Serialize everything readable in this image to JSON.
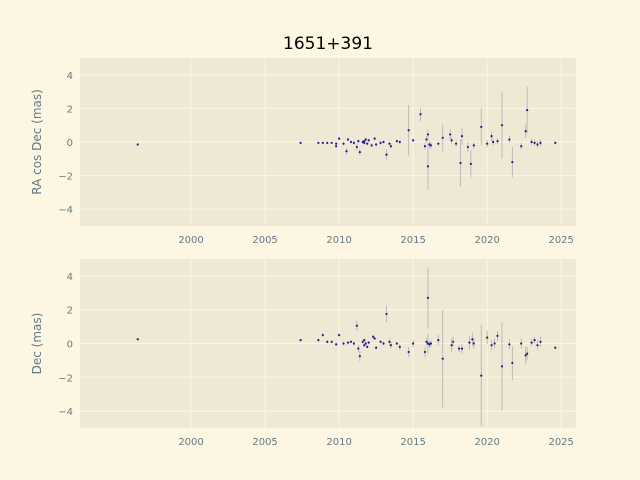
{
  "title": "1651+391",
  "chart_data": [
    {
      "type": "scatter",
      "ylabel": "RA cos Dec (mas)",
      "xlim": [
        1992.5,
        2026
      ],
      "ylim": [
        -5,
        5
      ],
      "xticks": [
        2000,
        2005,
        2010,
        2015,
        2020,
        2025
      ],
      "yticks": [
        -4,
        -2,
        0,
        2,
        4
      ],
      "grid": true,
      "marker_color": "#1f1f8f",
      "errorbar_color": "#b0b0b0",
      "points": [
        {
          "x": 1996.4,
          "y": -0.15,
          "err": 0.05
        },
        {
          "x": 2007.4,
          "y": -0.05,
          "err": 0.05
        },
        {
          "x": 2008.6,
          "y": -0.05,
          "err": 0.05
        },
        {
          "x": 2008.9,
          "y": -0.05,
          "err": 0.05
        },
        {
          "x": 2009.2,
          "y": -0.05,
          "err": 0.05
        },
        {
          "x": 2009.5,
          "y": -0.05,
          "err": 0.05
        },
        {
          "x": 2009.8,
          "y": -0.1,
          "err": 0.1
        },
        {
          "x": 2009.8,
          "y": -0.25,
          "err": 0.1
        },
        {
          "x": 2010.0,
          "y": 0.2,
          "err": 0.1
        },
        {
          "x": 2010.3,
          "y": -0.1,
          "err": 0.1
        },
        {
          "x": 2010.5,
          "y": -0.55,
          "err": 0.2
        },
        {
          "x": 2010.6,
          "y": 0.15,
          "err": 0.1
        },
        {
          "x": 2010.8,
          "y": 0.0,
          "err": 0.1
        },
        {
          "x": 2011.0,
          "y": -0.05,
          "err": 0.1
        },
        {
          "x": 2011.2,
          "y": -0.3,
          "err": 0.2
        },
        {
          "x": 2011.3,
          "y": 0.05,
          "err": 0.1
        },
        {
          "x": 2011.4,
          "y": -0.6,
          "err": 0.2
        },
        {
          "x": 2011.6,
          "y": 0.0,
          "err": 0.1
        },
        {
          "x": 2011.7,
          "y": 0.05,
          "err": 0.1
        },
        {
          "x": 2011.7,
          "y": -0.05,
          "err": 0.1
        },
        {
          "x": 2011.8,
          "y": 0.15,
          "err": 0.1
        },
        {
          "x": 2011.9,
          "y": -0.1,
          "err": 0.1
        },
        {
          "x": 2012.0,
          "y": 0.1,
          "err": 0.1
        },
        {
          "x": 2012.2,
          "y": -0.2,
          "err": 0.1
        },
        {
          "x": 2012.4,
          "y": 0.2,
          "err": 0.1
        },
        {
          "x": 2012.5,
          "y": -0.15,
          "err": 0.1
        },
        {
          "x": 2012.8,
          "y": -0.05,
          "err": 0.1
        },
        {
          "x": 2013.0,
          "y": 0.0,
          "err": 0.1
        },
        {
          "x": 2013.2,
          "y": -0.75,
          "err": 0.3
        },
        {
          "x": 2013.4,
          "y": -0.1,
          "err": 0.1
        },
        {
          "x": 2013.5,
          "y": -0.25,
          "err": 0.15
        },
        {
          "x": 2013.9,
          "y": 0.05,
          "err": 0.1
        },
        {
          "x": 2014.1,
          "y": 0.0,
          "err": 0.1
        },
        {
          "x": 2014.7,
          "y": 0.7,
          "err": 1.5
        },
        {
          "x": 2015.0,
          "y": 0.1,
          "err": 0.1
        },
        {
          "x": 2015.5,
          "y": 1.65,
          "err": 0.4
        },
        {
          "x": 2015.8,
          "y": -0.25,
          "err": 0.2
        },
        {
          "x": 2015.9,
          "y": 0.15,
          "err": 0.2
        },
        {
          "x": 2016.0,
          "y": 0.45,
          "err": 0.3
        },
        {
          "x": 2016.0,
          "y": -1.45,
          "err": 1.4
        },
        {
          "x": 2016.1,
          "y": -0.15,
          "err": 0.2
        },
        {
          "x": 2016.2,
          "y": -0.2,
          "err": 0.2
        },
        {
          "x": 2016.7,
          "y": -0.1,
          "err": 0.1
        },
        {
          "x": 2017.0,
          "y": 0.25,
          "err": 0.8
        },
        {
          "x": 2017.5,
          "y": 0.45,
          "err": 0.3
        },
        {
          "x": 2017.6,
          "y": 0.1,
          "err": 0.2
        },
        {
          "x": 2017.9,
          "y": -0.1,
          "err": 0.2
        },
        {
          "x": 2018.2,
          "y": -1.25,
          "err": 1.4
        },
        {
          "x": 2018.3,
          "y": 0.35,
          "err": 0.5
        },
        {
          "x": 2018.7,
          "y": -0.3,
          "err": 0.3
        },
        {
          "x": 2018.9,
          "y": -1.3,
          "err": 0.8
        },
        {
          "x": 2019.1,
          "y": -0.2,
          "err": 0.2
        },
        {
          "x": 2019.6,
          "y": 0.9,
          "err": 1.1
        },
        {
          "x": 2020.0,
          "y": -0.1,
          "err": 0.2
        },
        {
          "x": 2020.3,
          "y": 0.35,
          "err": 0.3
        },
        {
          "x": 2020.4,
          "y": 0.0,
          "err": 0.2
        },
        {
          "x": 2020.7,
          "y": 0.05,
          "err": 0.2
        },
        {
          "x": 2021.0,
          "y": 1.0,
          "err": 2.0
        },
        {
          "x": 2021.5,
          "y": 0.15,
          "err": 0.2
        },
        {
          "x": 2021.7,
          "y": -1.2,
          "err": 0.9
        },
        {
          "x": 2022.3,
          "y": -0.25,
          "err": 0.2
        },
        {
          "x": 2022.6,
          "y": 0.65,
          "err": 0.4
        },
        {
          "x": 2022.7,
          "y": 1.9,
          "err": 1.4
        },
        {
          "x": 2023.0,
          "y": 0.0,
          "err": 0.2
        },
        {
          "x": 2023.2,
          "y": -0.05,
          "err": 0.2
        },
        {
          "x": 2023.4,
          "y": -0.15,
          "err": 0.2
        },
        {
          "x": 2023.6,
          "y": -0.05,
          "err": 0.2
        },
        {
          "x": 2024.6,
          "y": -0.05,
          "err": 0.1
        }
      ]
    },
    {
      "type": "scatter",
      "ylabel": "Dec (mas)",
      "xlim": [
        1992.5,
        2026
      ],
      "ylim": [
        -5,
        5
      ],
      "xticks": [
        2000,
        2005,
        2010,
        2015,
        2020,
        2025
      ],
      "yticks": [
        -4,
        -2,
        0,
        2,
        4
      ],
      "grid": true,
      "marker_color": "#1f1f8f",
      "errorbar_color": "#b0b0b0",
      "points": [
        {
          "x": 1996.4,
          "y": 0.25,
          "err": 0.05
        },
        {
          "x": 2007.4,
          "y": 0.2,
          "err": 0.05
        },
        {
          "x": 2008.6,
          "y": 0.2,
          "err": 0.1
        },
        {
          "x": 2008.9,
          "y": 0.5,
          "err": 0.1
        },
        {
          "x": 2009.2,
          "y": 0.1,
          "err": 0.1
        },
        {
          "x": 2009.5,
          "y": 0.1,
          "err": 0.1
        },
        {
          "x": 2009.8,
          "y": -0.05,
          "err": 0.1
        },
        {
          "x": 2010.0,
          "y": 0.5,
          "err": 0.1
        },
        {
          "x": 2010.3,
          "y": 0.0,
          "err": 0.1
        },
        {
          "x": 2010.6,
          "y": 0.05,
          "err": 0.1
        },
        {
          "x": 2010.8,
          "y": 0.1,
          "err": 0.1
        },
        {
          "x": 2011.0,
          "y": 0.0,
          "err": 0.1
        },
        {
          "x": 2011.2,
          "y": 1.05,
          "err": 0.3
        },
        {
          "x": 2011.3,
          "y": -0.3,
          "err": 0.2
        },
        {
          "x": 2011.4,
          "y": -0.75,
          "err": 0.3
        },
        {
          "x": 2011.6,
          "y": 0.1,
          "err": 0.1
        },
        {
          "x": 2011.7,
          "y": -0.1,
          "err": 0.1
        },
        {
          "x": 2011.7,
          "y": 0.2,
          "err": 0.1
        },
        {
          "x": 2011.8,
          "y": 0.0,
          "err": 0.1
        },
        {
          "x": 2011.9,
          "y": -0.2,
          "err": 0.1
        },
        {
          "x": 2012.0,
          "y": 0.05,
          "err": 0.1
        },
        {
          "x": 2012.3,
          "y": 0.4,
          "err": 0.1
        },
        {
          "x": 2012.4,
          "y": 0.3,
          "err": 0.1
        },
        {
          "x": 2012.5,
          "y": -0.25,
          "err": 0.1
        },
        {
          "x": 2012.8,
          "y": 0.1,
          "err": 0.1
        },
        {
          "x": 2013.0,
          "y": 0.0,
          "err": 0.1
        },
        {
          "x": 2013.2,
          "y": 1.75,
          "err": 0.5
        },
        {
          "x": 2013.4,
          "y": 0.1,
          "err": 0.2
        },
        {
          "x": 2013.5,
          "y": -0.1,
          "err": 0.2
        },
        {
          "x": 2013.9,
          "y": 0.0,
          "err": 0.1
        },
        {
          "x": 2014.1,
          "y": -0.2,
          "err": 0.2
        },
        {
          "x": 2014.7,
          "y": -0.5,
          "err": 0.3
        },
        {
          "x": 2015.0,
          "y": 0.0,
          "err": 0.2
        },
        {
          "x": 2015.8,
          "y": -0.5,
          "err": 0.3
        },
        {
          "x": 2015.9,
          "y": 0.1,
          "err": 0.2
        },
        {
          "x": 2016.0,
          "y": 2.7,
          "err": 1.8
        },
        {
          "x": 2016.0,
          "y": 0.0,
          "err": 0.6
        },
        {
          "x": 2016.1,
          "y": -0.05,
          "err": 0.2
        },
        {
          "x": 2016.2,
          "y": 0.0,
          "err": 0.2
        },
        {
          "x": 2016.7,
          "y": 0.2,
          "err": 0.3
        },
        {
          "x": 2017.0,
          "y": -0.9,
          "err": 2.9
        },
        {
          "x": 2017.6,
          "y": -0.1,
          "err": 0.4
        },
        {
          "x": 2017.7,
          "y": 0.1,
          "err": 0.3
        },
        {
          "x": 2018.1,
          "y": -0.3,
          "err": 0.2
        },
        {
          "x": 2018.3,
          "y": -0.3,
          "err": 0.3
        },
        {
          "x": 2018.8,
          "y": 0.05,
          "err": 0.4
        },
        {
          "x": 2019.0,
          "y": 0.25,
          "err": 0.4
        },
        {
          "x": 2019.1,
          "y": 0.0,
          "err": 0.3
        },
        {
          "x": 2019.6,
          "y": -1.9,
          "err": 3.0
        },
        {
          "x": 2020.0,
          "y": 0.35,
          "err": 0.4
        },
        {
          "x": 2020.3,
          "y": -0.1,
          "err": 0.3
        },
        {
          "x": 2020.5,
          "y": 0.0,
          "err": 0.3
        },
        {
          "x": 2020.7,
          "y": 0.45,
          "err": 0.3
        },
        {
          "x": 2021.0,
          "y": -1.35,
          "err": 2.6
        },
        {
          "x": 2021.5,
          "y": -0.05,
          "err": 0.3
        },
        {
          "x": 2021.7,
          "y": -1.15,
          "err": 1.0
        },
        {
          "x": 2022.3,
          "y": 0.0,
          "err": 0.3
        },
        {
          "x": 2022.6,
          "y": -0.7,
          "err": 0.5
        },
        {
          "x": 2022.7,
          "y": -0.6,
          "err": 0.4
        },
        {
          "x": 2023.0,
          "y": 0.05,
          "err": 0.2
        },
        {
          "x": 2023.2,
          "y": 0.2,
          "err": 0.2
        },
        {
          "x": 2023.4,
          "y": -0.1,
          "err": 0.3
        },
        {
          "x": 2023.6,
          "y": 0.1,
          "err": 0.3
        },
        {
          "x": 2024.6,
          "y": -0.25,
          "err": 0.1
        }
      ]
    }
  ]
}
